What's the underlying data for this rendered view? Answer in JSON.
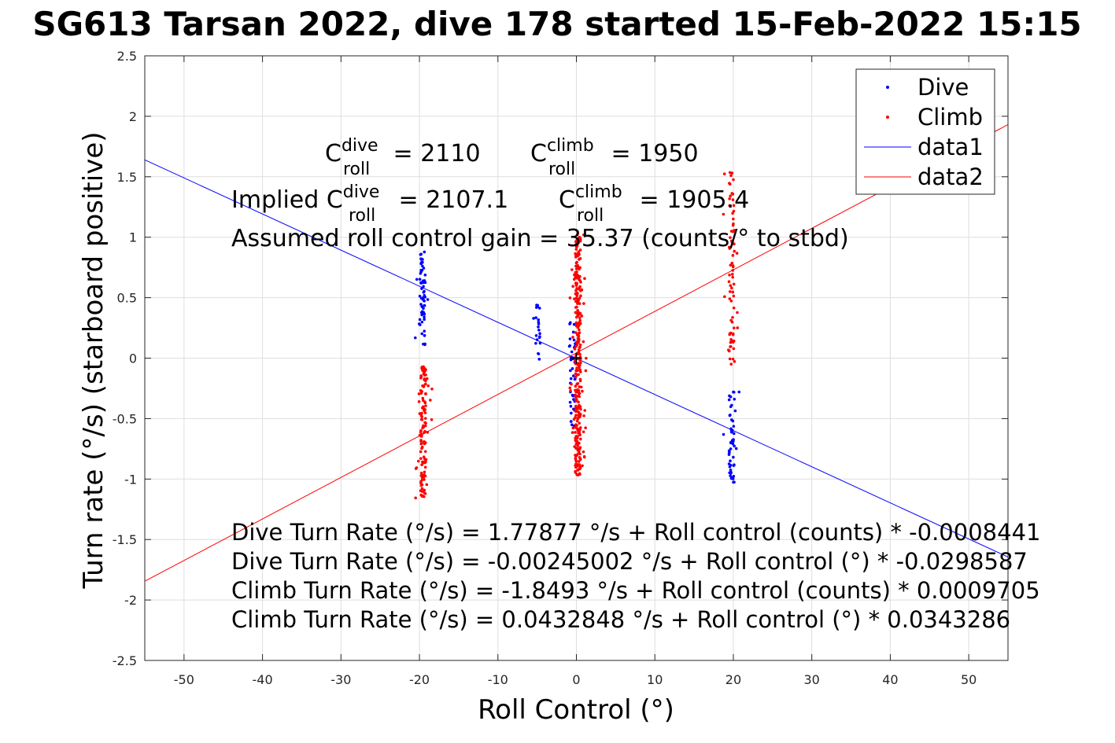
{
  "chart_data": {
    "type": "scatter",
    "title": "SG613 Tarsan 2022, dive 178 started 15-Feb-2022 15:15",
    "xlabel": "Roll Control (°)",
    "ylabel": "Turn rate (°/s) (starboard positive)",
    "xlim": [
      -55,
      55
    ],
    "ylim": [
      -2.5,
      2.5
    ],
    "x_ticks": [
      -50,
      -40,
      -30,
      -20,
      -10,
      0,
      10,
      20,
      30,
      40,
      50
    ],
    "y_ticks": [
      -2.5,
      -2,
      -1.5,
      -1,
      -0.5,
      0,
      0.5,
      1,
      1.5,
      2,
      2.5
    ],
    "x_tick_labels": [
      "-50",
      "-40",
      "-30",
      "-20",
      "-10",
      "0",
      "10",
      "20",
      "30",
      "40",
      "50"
    ],
    "y_tick_labels": [
      "-2.5",
      "-2",
      "-1.5",
      "-1",
      "-0.5",
      "0",
      "0.5",
      "1",
      "1.5",
      "2",
      "2.5"
    ],
    "grid": true,
    "legend_position": "top-right",
    "series": [
      {
        "name": "Dive",
        "kind": "points",
        "color": "#0000ff",
        "clusters": [
          {
            "x": -19.6,
            "y_min": 0.1,
            "y_max": 0.88,
            "n": 60
          },
          {
            "x": -5.0,
            "y_min": -0.03,
            "y_max": 0.47,
            "n": 22
          },
          {
            "x": -0.5,
            "y_min": -0.6,
            "y_max": 0.3,
            "n": 40
          },
          {
            "x": 19.8,
            "y_min": -1.03,
            "y_max": -0.25,
            "n": 55
          }
        ]
      },
      {
        "name": "Climb",
        "kind": "points",
        "color": "#ff0000",
        "clusters": [
          {
            "x": -19.5,
            "y_min": -1.17,
            "y_max": -0.05,
            "n": 130
          },
          {
            "x": 0.2,
            "y_min": -0.97,
            "y_max": 1.03,
            "n": 320
          },
          {
            "x": 19.8,
            "y_min": -0.05,
            "y_max": 1.54,
            "n": 80
          }
        ]
      },
      {
        "name": "data1",
        "kind": "line",
        "color": "#0000ff",
        "intercept": -0.00245002,
        "slope": -0.0298587
      },
      {
        "name": "data2",
        "kind": "line",
        "color": "#ff0000",
        "intercept": 0.0432848,
        "slope": 0.0343286
      }
    ],
    "annotations": {
      "c_dive_label": "C",
      "c_dive_sup": "dive",
      "c_dive_sub": "roll",
      "c_dive_value": " = 2110",
      "c_climb_label": "C",
      "c_climb_sup": "climb",
      "c_climb_sub": "roll",
      "c_climb_value": " = 1950",
      "implied_prefix": "Implied C",
      "implied_dive_sup": "dive",
      "implied_dive_sub": "roll",
      "implied_dive_value": " = 2107.1",
      "implied_climb_label": "C",
      "implied_climb_sup": "climb",
      "implied_climb_sub": "roll",
      "implied_climb_value": " = 1905.4",
      "gain": "Assumed roll control gain = 35.37 (counts/° to stbd)",
      "eq1": "Dive Turn Rate (°/s) = 1.77877 °/s + Roll control (counts) * -0.0008441",
      "eq2": "Dive Turn Rate (°/s) = -0.00245002 °/s + Roll control (°) * -0.0298587",
      "eq3": "Climb Turn Rate (°/s) = -1.8493 °/s + Roll control (counts) * 0.0009705",
      "eq4": "Climb Turn Rate (°/s) = 0.0432848 °/s + Roll control (°) * 0.0343286"
    }
  }
}
